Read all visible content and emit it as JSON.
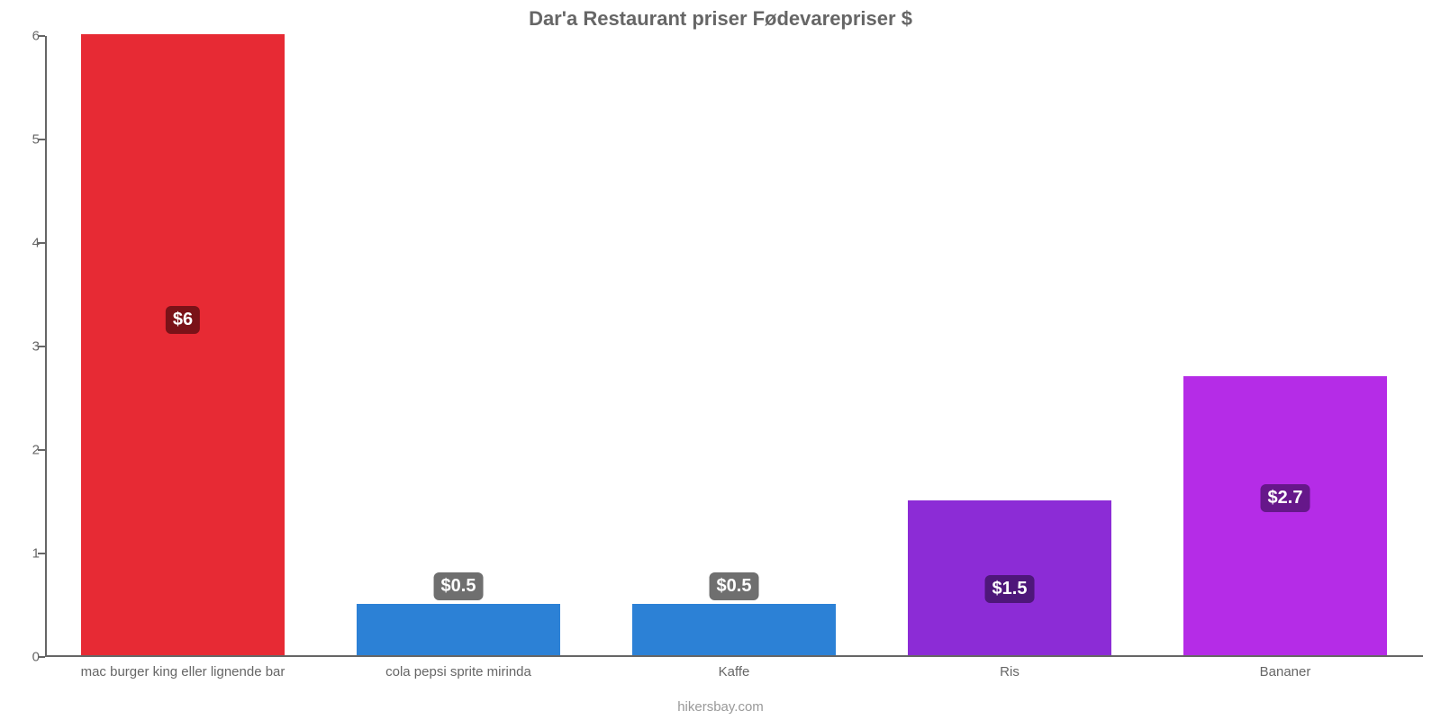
{
  "chart": {
    "type": "bar",
    "title": "Dar'a Restaurant priser Fødevarepriser $",
    "title_fontsize": 22,
    "title_color": "#666666",
    "background_color": "#ffffff",
    "axis_color": "#666666",
    "label_color": "#666666",
    "label_fontsize": 15,
    "ylim": [
      0,
      6
    ],
    "ytick_step": 1,
    "yticks": [
      0,
      1,
      2,
      3,
      4,
      5,
      6
    ],
    "bar_width": 0.74,
    "categories": [
      "mac burger king eller lignende bar",
      "cola pepsi sprite mirinda",
      "Kaffe",
      "Ris",
      "Bananer"
    ],
    "values": [
      6,
      0.5,
      0.5,
      1.5,
      2.7
    ],
    "value_labels": [
      "$6",
      "$0.5",
      "$0.5",
      "$1.5",
      "$2.7"
    ],
    "bar_colors": [
      "#e72a34",
      "#2c81d6",
      "#2c81d6",
      "#8c2cd6",
      "#b52ce7"
    ],
    "value_badge_bg": [
      "#7a1218",
      "#6f6f6f",
      "#6f6f6f",
      "#4e177a",
      "#66178a"
    ],
    "value_badge_text_color": "#ffffff",
    "value_badge_fontsize": 20,
    "credit": "hikersbay.com",
    "credit_color": "#999999"
  }
}
